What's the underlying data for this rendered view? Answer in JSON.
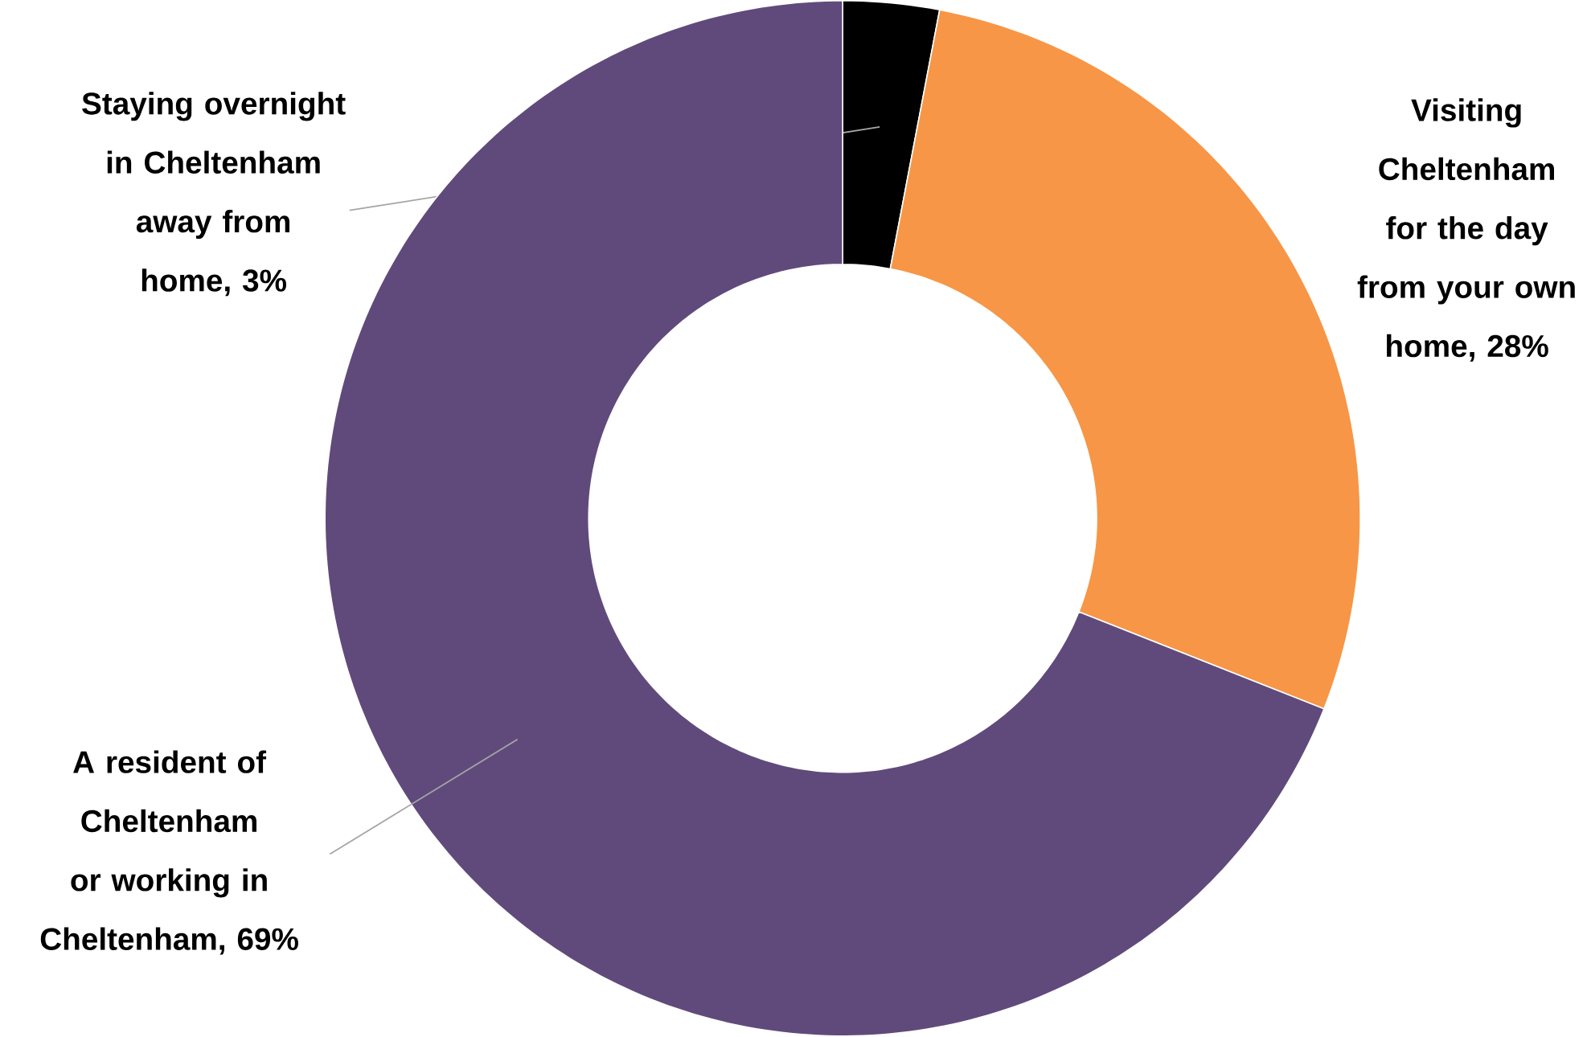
{
  "chart_data": {
    "type": "donut",
    "categories": [
      "Staying overnight in Cheltenham away from home, 3%",
      "Visiting Cheltenham for the day from your own home, 28%",
      "A resident of Cheltenham or working in Cheltenham, 69%"
    ],
    "values": [
      3,
      28,
      69
    ],
    "colors": [
      "#000000",
      "#f79646",
      "#604a7b"
    ]
  }
}
